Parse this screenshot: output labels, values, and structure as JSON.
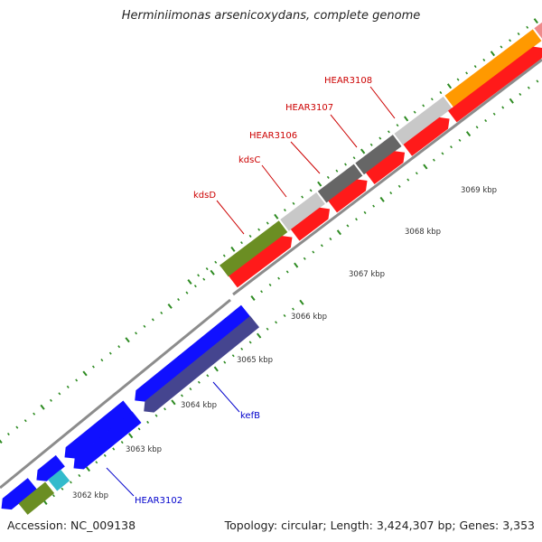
{
  "title": "Herminiimonas arsenicoxydans, complete genome",
  "footer": {
    "accession": "Accession: NC_009138",
    "topology": "Topology: circular; Length: 3,424,307 bp; Genes: 3,353"
  },
  "colors": {
    "background": "#ffffff",
    "backbone": "#8c8c8c",
    "tick": "#2e8b22",
    "red": "#ff1a1a",
    "blue": "#1010ff",
    "navy": "#45458f",
    "olive": "#6b8e23",
    "grey_light": "#c8c8c8",
    "grey_dark": "#666666",
    "orange": "#ff9900",
    "pink": "#ef8a8a",
    "cyan": "#33bbcc",
    "label_red": "#cc0000",
    "label_blue": "#0000cc",
    "kbp_text": "#333333"
  },
  "kbp_labels": [
    "3062 kbp",
    "3063 kbp",
    "3064 kbp",
    "3065 kbp",
    "3066 kbp",
    "3067 kbp",
    "3068 kbp",
    "3069 kbp"
  ],
  "gene_labels": [
    {
      "text": "kdsD",
      "color": "red"
    },
    {
      "text": "kdsC",
      "color": "red"
    },
    {
      "text": "HEAR3106",
      "color": "red"
    },
    {
      "text": "HEAR3107",
      "color": "red"
    },
    {
      "text": "HEAR3108",
      "color": "red"
    },
    {
      "text": "kefB",
      "color": "blue"
    },
    {
      "text": "HEAR3102",
      "color": "blue"
    }
  ]
}
